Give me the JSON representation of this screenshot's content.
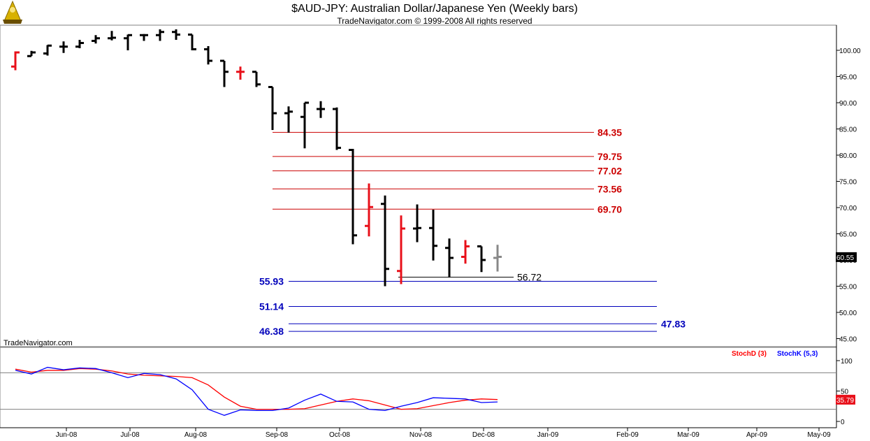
{
  "header": {
    "title": "$AUD-JPY:  Australian Dollar/Japanese Yen  (Weekly bars)",
    "subtitle": "TradeNavigator.com © 1999-2008 All rights reserved",
    "watermark": "TradeNavigator.com"
  },
  "colors": {
    "up_bar": "#000000",
    "down_bar_red": "#e8101a",
    "current_bar": "#888888",
    "resistance": "#cc0000",
    "support": "#0000bb",
    "stoch_d": "#ff0000",
    "stoch_k": "#0000ff",
    "grid": "#808080"
  },
  "chart_data": [
    {
      "type": "ohlc",
      "title": "$AUD-JPY:  Australian Dollar/Japanese Yen  (Weekly bars)",
      "x_ticks": [
        "Jun-08",
        "Jul-08",
        "Aug-08",
        "Sep-08",
        "Oct-08",
        "Nov-08",
        "Dec-08",
        "Jan-09",
        "Feb-09",
        "Mar-09",
        "Apr-09",
        "May-09"
      ],
      "y_ticks": [
        "100.00",
        "95.00",
        "90.00",
        "85.00",
        "80.00",
        "75.00",
        "70.00",
        "65.00",
        "60.00",
        "55.00",
        "50.00",
        "45.00"
      ],
      "ylim": [
        43,
        104
      ],
      "last_price": "60.55",
      "bars": [
        {
          "open": 96.9,
          "high": 99.8,
          "low": 96.2,
          "close": 99.6,
          "color": "red"
        },
        {
          "open": 98.9,
          "high": 99.9,
          "low": 98.9,
          "close": 99.6,
          "color": "black"
        },
        {
          "open": 99.4,
          "high": 101.0,
          "low": 99.0,
          "close": 100.9,
          "color": "black"
        },
        {
          "open": 100.7,
          "high": 101.7,
          "low": 99.5,
          "close": 100.7,
          "color": "black"
        },
        {
          "open": 100.7,
          "high": 102.0,
          "low": 100.4,
          "close": 101.4,
          "color": "black"
        },
        {
          "open": 101.8,
          "high": 102.9,
          "low": 101.3,
          "close": 102.3,
          "color": "black"
        },
        {
          "open": 102.3,
          "high": 103.7,
          "low": 101.9,
          "close": 102.4,
          "color": "black"
        },
        {
          "open": 102.3,
          "high": 103.0,
          "low": 100.0,
          "close": 102.9,
          "color": "black"
        },
        {
          "open": 102.9,
          "high": 103.1,
          "low": 101.8,
          "close": 102.9,
          "color": "black"
        },
        {
          "open": 102.9,
          "high": 104.0,
          "low": 101.8,
          "close": 103.5,
          "color": "black"
        },
        {
          "open": 103.5,
          "high": 104.0,
          "low": 102.0,
          "close": 103.0,
          "color": "black"
        },
        {
          "open": 103.0,
          "high": 103.0,
          "low": 100.0,
          "close": 100.2,
          "color": "black"
        },
        {
          "open": 100.2,
          "high": 100.8,
          "low": 97.3,
          "close": 98.0,
          "color": "black"
        },
        {
          "open": 98.0,
          "high": 98.0,
          "low": 93.0,
          "close": 95.9,
          "color": "black"
        },
        {
          "open": 95.9,
          "high": 96.9,
          "low": 94.4,
          "close": 95.9,
          "color": "red"
        },
        {
          "open": 95.9,
          "high": 95.9,
          "low": 93.0,
          "close": 93.5,
          "color": "black"
        },
        {
          "open": 93.0,
          "high": 93.0,
          "low": 84.8,
          "close": 88.0,
          "color": "black"
        },
        {
          "open": 88.0,
          "high": 89.3,
          "low": 84.3,
          "close": 88.3,
          "color": "black"
        },
        {
          "open": 87.3,
          "high": 90.0,
          "low": 81.3,
          "close": 90.0,
          "color": "black"
        },
        {
          "open": 88.8,
          "high": 90.3,
          "low": 87.1,
          "close": 88.8,
          "color": "black"
        },
        {
          "open": 88.8,
          "high": 89.1,
          "low": 81.0,
          "close": 81.4,
          "color": "black"
        },
        {
          "open": 81.0,
          "high": 81.2,
          "low": 63.0,
          "close": 64.7,
          "color": "black"
        },
        {
          "open": 66.5,
          "high": 74.6,
          "low": 64.5,
          "close": 70.1,
          "color": "red"
        },
        {
          "open": 70.7,
          "high": 72.3,
          "low": 55.0,
          "close": 58.3,
          "color": "black"
        },
        {
          "open": 57.9,
          "high": 68.5,
          "low": 55.4,
          "close": 66.0,
          "color": "red"
        },
        {
          "open": 66.0,
          "high": 70.6,
          "low": 63.4,
          "close": 66.1,
          "color": "black"
        },
        {
          "open": 66.1,
          "high": 69.6,
          "low": 59.9,
          "close": 62.7,
          "color": "black"
        },
        {
          "open": 62.3,
          "high": 64.1,
          "low": 56.7,
          "close": 60.4,
          "color": "black"
        },
        {
          "open": 60.6,
          "high": 63.8,
          "low": 59.3,
          "close": 62.6,
          "color": "red"
        },
        {
          "open": 62.6,
          "high": 62.6,
          "low": 57.7,
          "close": 60.0,
          "color": "black"
        },
        {
          "open": 60.4,
          "high": 62.9,
          "low": 57.8,
          "close": 60.6,
          "color": "gray"
        }
      ],
      "levels": [
        {
          "label": "84.35",
          "value": 84.35,
          "kind": "resistance"
        },
        {
          "label": "79.75",
          "value": 79.75,
          "kind": "resistance"
        },
        {
          "label": "77.02",
          "value": 77.02,
          "kind": "resistance"
        },
        {
          "label": "73.56",
          "value": 73.56,
          "kind": "resistance"
        },
        {
          "label": "69.70",
          "value": 69.7,
          "kind": "resistance"
        },
        {
          "label": "55.93",
          "value": 55.93,
          "kind": "support"
        },
        {
          "label": "51.14",
          "value": 51.14,
          "kind": "support"
        },
        {
          "label": "47.83",
          "value": 47.83,
          "kind": "support"
        },
        {
          "label": "46.38",
          "value": 46.38,
          "kind": "support"
        }
      ],
      "annotation": {
        "label": "56.72",
        "value": 56.72
      }
    },
    {
      "type": "line",
      "y_ticks": [
        "100",
        "50",
        "0"
      ],
      "ylim": [
        -5,
        100
      ],
      "ref_lines": [
        80,
        20
      ],
      "last_value": "35.79",
      "series": [
        {
          "name": "StochD (3)",
          "color": "red",
          "values": [
            86,
            81,
            84,
            84,
            87,
            86,
            83,
            78,
            76,
            75,
            74,
            72,
            60,
            40,
            25,
            20,
            20,
            20,
            21,
            27,
            33,
            37,
            34,
            27,
            20,
            21,
            26,
            31,
            35,
            37,
            36
          ]
        },
        {
          "name": "StochK (5,3)",
          "color": "blue",
          "values": [
            84,
            78,
            89,
            85,
            88,
            87,
            80,
            72,
            79,
            77,
            70,
            52,
            20,
            10,
            19,
            18,
            18,
            22,
            35,
            45,
            33,
            32,
            20,
            18,
            25,
            31,
            39,
            38,
            37,
            31,
            32
          ]
        }
      ]
    }
  ]
}
